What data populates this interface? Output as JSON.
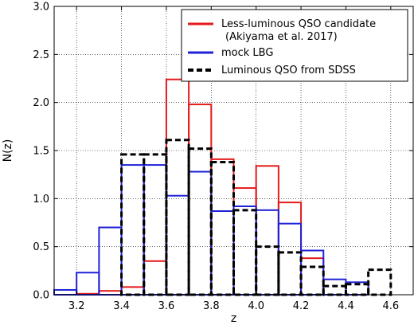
{
  "chart_data": {
    "type": "bar",
    "style": "step-histogram",
    "xlabel": "z",
    "ylabel": "N(z)",
    "xlim": [
      3.1,
      4.7
    ],
    "ylim": [
      0.0,
      3.0
    ],
    "grid": true,
    "grid_style": "dotted",
    "legend_position": "top-right",
    "x_ticks": [
      "3.2",
      "3.4",
      "3.6",
      "3.8",
      "4.0",
      "4.2",
      "4.4",
      "4.6"
    ],
    "y_ticks": [
      "0.0",
      "0.5",
      "1.0",
      "1.5",
      "2.0",
      "2.5",
      "3.0"
    ],
    "bin_edges": [
      3.1,
      3.2,
      3.3,
      3.4,
      3.5,
      3.6,
      3.7,
      3.8,
      3.9,
      4.0,
      4.1,
      4.2,
      4.3,
      4.4,
      4.5,
      4.6,
      4.7
    ],
    "series": [
      {
        "name": "Less-luminous QSO candidate",
        "name_line2": "(Akiyama et al. 2017)",
        "color": "#e41a1c",
        "style": "solid",
        "values": [
          0.0,
          0.01,
          0.04,
          0.08,
          0.35,
          2.24,
          1.98,
          1.41,
          1.11,
          1.34,
          0.96,
          0.38,
          0.0,
          0.0,
          0.0,
          0.0
        ]
      },
      {
        "name": "mock LBG",
        "color": "#1f22d6",
        "style": "solid",
        "values": [
          0.05,
          0.23,
          0.7,
          1.35,
          1.35,
          1.03,
          1.28,
          0.87,
          0.92,
          0.88,
          0.74,
          0.46,
          0.16,
          0.13,
          0.0,
          0.0
        ]
      },
      {
        "name": "Luminous QSO from SDSS",
        "color": "#000000",
        "style": "dashed",
        "values": [
          0.0,
          0.0,
          0.0,
          1.46,
          1.46,
          1.61,
          1.52,
          1.38,
          0.88,
          0.5,
          0.44,
          0.29,
          0.09,
          0.11,
          0.26,
          0.0
        ]
      }
    ]
  }
}
